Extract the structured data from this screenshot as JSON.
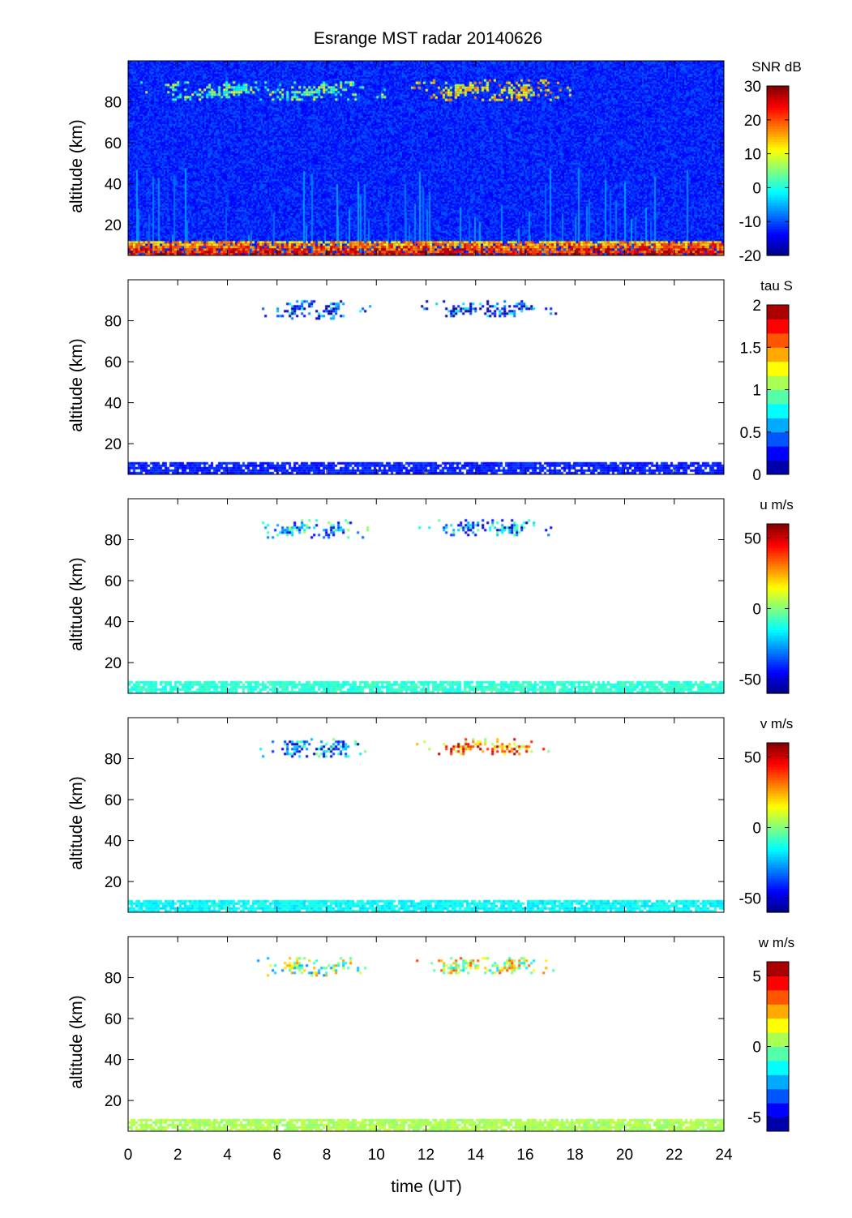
{
  "chart_data": {
    "type": "heatmap",
    "title": "Esrange MST radar 20140626",
    "xlabel": "time (UT)",
    "xlim": [
      0,
      24
    ],
    "x_ticks": [
      "0",
      "2",
      "4",
      "6",
      "8",
      "10",
      "12",
      "14",
      "16",
      "18",
      "20",
      "22",
      "24"
    ],
    "panels": [
      {
        "id": "snr",
        "ylabel": "altitude (km)",
        "ylim": [
          5,
          100
        ],
        "y_ticks": [
          "20",
          "40",
          "60",
          "80"
        ],
        "colorbar_title": "SNR dB",
        "colorbar_range": [
          -20,
          30
        ],
        "colorbar_ticks": [
          "-20",
          "-10",
          "0",
          "10",
          "20",
          "30"
        ],
        "colorbar_discrete": false,
        "background": "filled",
        "echo_regions": [
          {
            "t": [
              0.3,
              11.0
            ],
            "alt": [
              81,
              90
            ],
            "level": 4
          },
          {
            "t": [
              11.0,
              18.3
            ],
            "alt": [
              81,
              91
            ],
            "level": 12
          },
          {
            "t": [
              0,
              24
            ],
            "alt": [
              5,
              12
            ],
            "level": 15
          }
        ]
      },
      {
        "id": "tau",
        "ylabel": "altitude (km)",
        "ylim": [
          5,
          100
        ],
        "y_ticks": [
          "20",
          "40",
          "60",
          "80"
        ],
        "colorbar_title": "tau S",
        "colorbar_range": [
          0,
          2
        ],
        "colorbar_ticks": [
          "0",
          "0.5",
          "1",
          "1.5",
          "2"
        ],
        "colorbar_discrete": true,
        "colorbar_steps": 12,
        "background": "blank",
        "echo_regions": [
          {
            "t": [
              5.0,
              9.8
            ],
            "alt": [
              81,
              90
            ],
            "level": 0.3
          },
          {
            "t": [
              11.5,
              17.3
            ],
            "alt": [
              82,
              90
            ],
            "level": 0.3
          },
          {
            "t": [
              0,
              24
            ],
            "alt": [
              5,
              11
            ],
            "level": 0.3
          }
        ]
      },
      {
        "id": "u",
        "ylabel": "altitude (km)",
        "ylim": [
          5,
          100
        ],
        "y_ticks": [
          "20",
          "40",
          "60",
          "80"
        ],
        "colorbar_title": "u m/s",
        "colorbar_range": [
          -60,
          60
        ],
        "colorbar_ticks": [
          "-50",
          "0",
          "50"
        ],
        "colorbar_discrete": false,
        "background": "blank",
        "echo_regions": [
          {
            "t": [
              5.0,
              9.8
            ],
            "alt": [
              81,
              90
            ],
            "level": -20
          },
          {
            "t": [
              11.5,
              17.3
            ],
            "alt": [
              82,
              90
            ],
            "level": -30
          },
          {
            "t": [
              0,
              24
            ],
            "alt": [
              5,
              11
            ],
            "level": -10
          }
        ]
      },
      {
        "id": "v",
        "ylabel": "altitude (km)",
        "ylim": [
          5,
          100
        ],
        "y_ticks": [
          "20",
          "40",
          "60",
          "80"
        ],
        "colorbar_title": "v m/s",
        "colorbar_range": [
          -60,
          60
        ],
        "colorbar_ticks": [
          "-50",
          "0",
          "50"
        ],
        "colorbar_discrete": false,
        "background": "blank",
        "echo_regions": [
          {
            "t": [
              5.0,
              9.8
            ],
            "alt": [
              81,
              90
            ],
            "level": -30
          },
          {
            "t": [
              11.5,
              17.3
            ],
            "alt": [
              82,
              90
            ],
            "level": 30
          },
          {
            "t": [
              0,
              24
            ],
            "alt": [
              5,
              11
            ],
            "level": -15
          }
        ]
      },
      {
        "id": "w",
        "ylabel": "altitude (km)",
        "ylim": [
          5,
          100
        ],
        "y_ticks": [
          "20",
          "40",
          "60",
          "80"
        ],
        "colorbar_title": "w m/s",
        "colorbar_range": [
          -6,
          6
        ],
        "colorbar_ticks": [
          "-5",
          "0",
          "5"
        ],
        "colorbar_discrete": true,
        "colorbar_steps": 12,
        "background": "blank",
        "echo_regions": [
          {
            "t": [
              5.0,
              9.8
            ],
            "alt": [
              81,
              90
            ],
            "level": 0
          },
          {
            "t": [
              11.5,
              17.3
            ],
            "alt": [
              82,
              90
            ],
            "level": 1
          },
          {
            "t": [
              0,
              24
            ],
            "alt": [
              5,
              11
            ],
            "level": 0.5
          }
        ]
      }
    ]
  }
}
